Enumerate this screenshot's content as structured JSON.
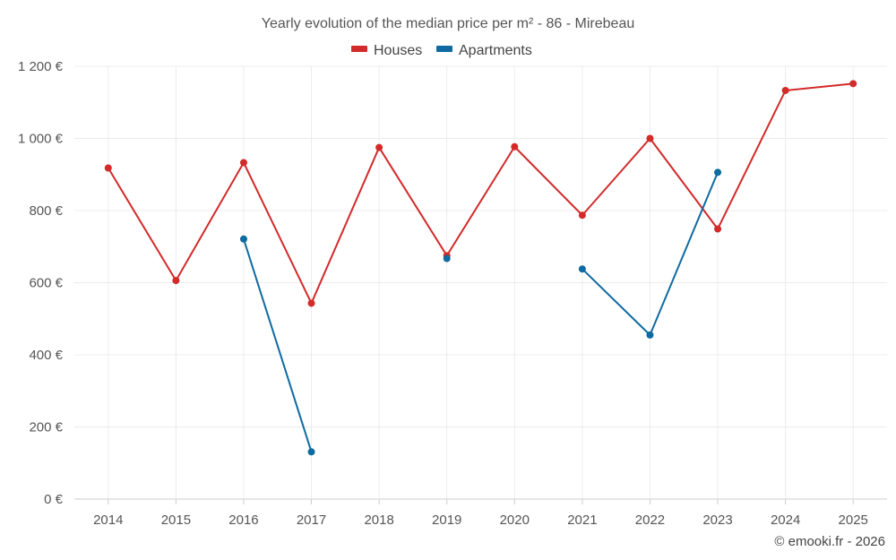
{
  "chart_data": {
    "type": "line",
    "title": "Yearly evolution of the median price per m² - 86 - Mirebeau",
    "categories": [
      "2014",
      "2015",
      "2016",
      "2017",
      "2018",
      "2019",
      "2020",
      "2021",
      "2022",
      "2023",
      "2024",
      "2025"
    ],
    "series": [
      {
        "name": "Houses",
        "color": "#d32a2a",
        "values": [
          918,
          606,
          933,
          543,
          975,
          675,
          977,
          787,
          1000,
          749,
          1133,
          1152
        ]
      },
      {
        "name": "Apartments",
        "color": "#0e6aa0",
        "values": [
          null,
          null,
          721,
          131,
          null,
          667,
          null,
          638,
          455,
          906,
          null,
          null
        ]
      }
    ],
    "ylim": [
      0,
      1200
    ],
    "yticks": [
      0,
      200,
      400,
      600,
      800,
      1000,
      1200
    ],
    "ytick_labels": [
      "0 €",
      "200 €",
      "400 €",
      "600 €",
      "800 €",
      "1 000 €",
      "1 200 €"
    ],
    "legend_position": "top-center",
    "grid": true
  },
  "credit": "© emooki.fr - 2026"
}
